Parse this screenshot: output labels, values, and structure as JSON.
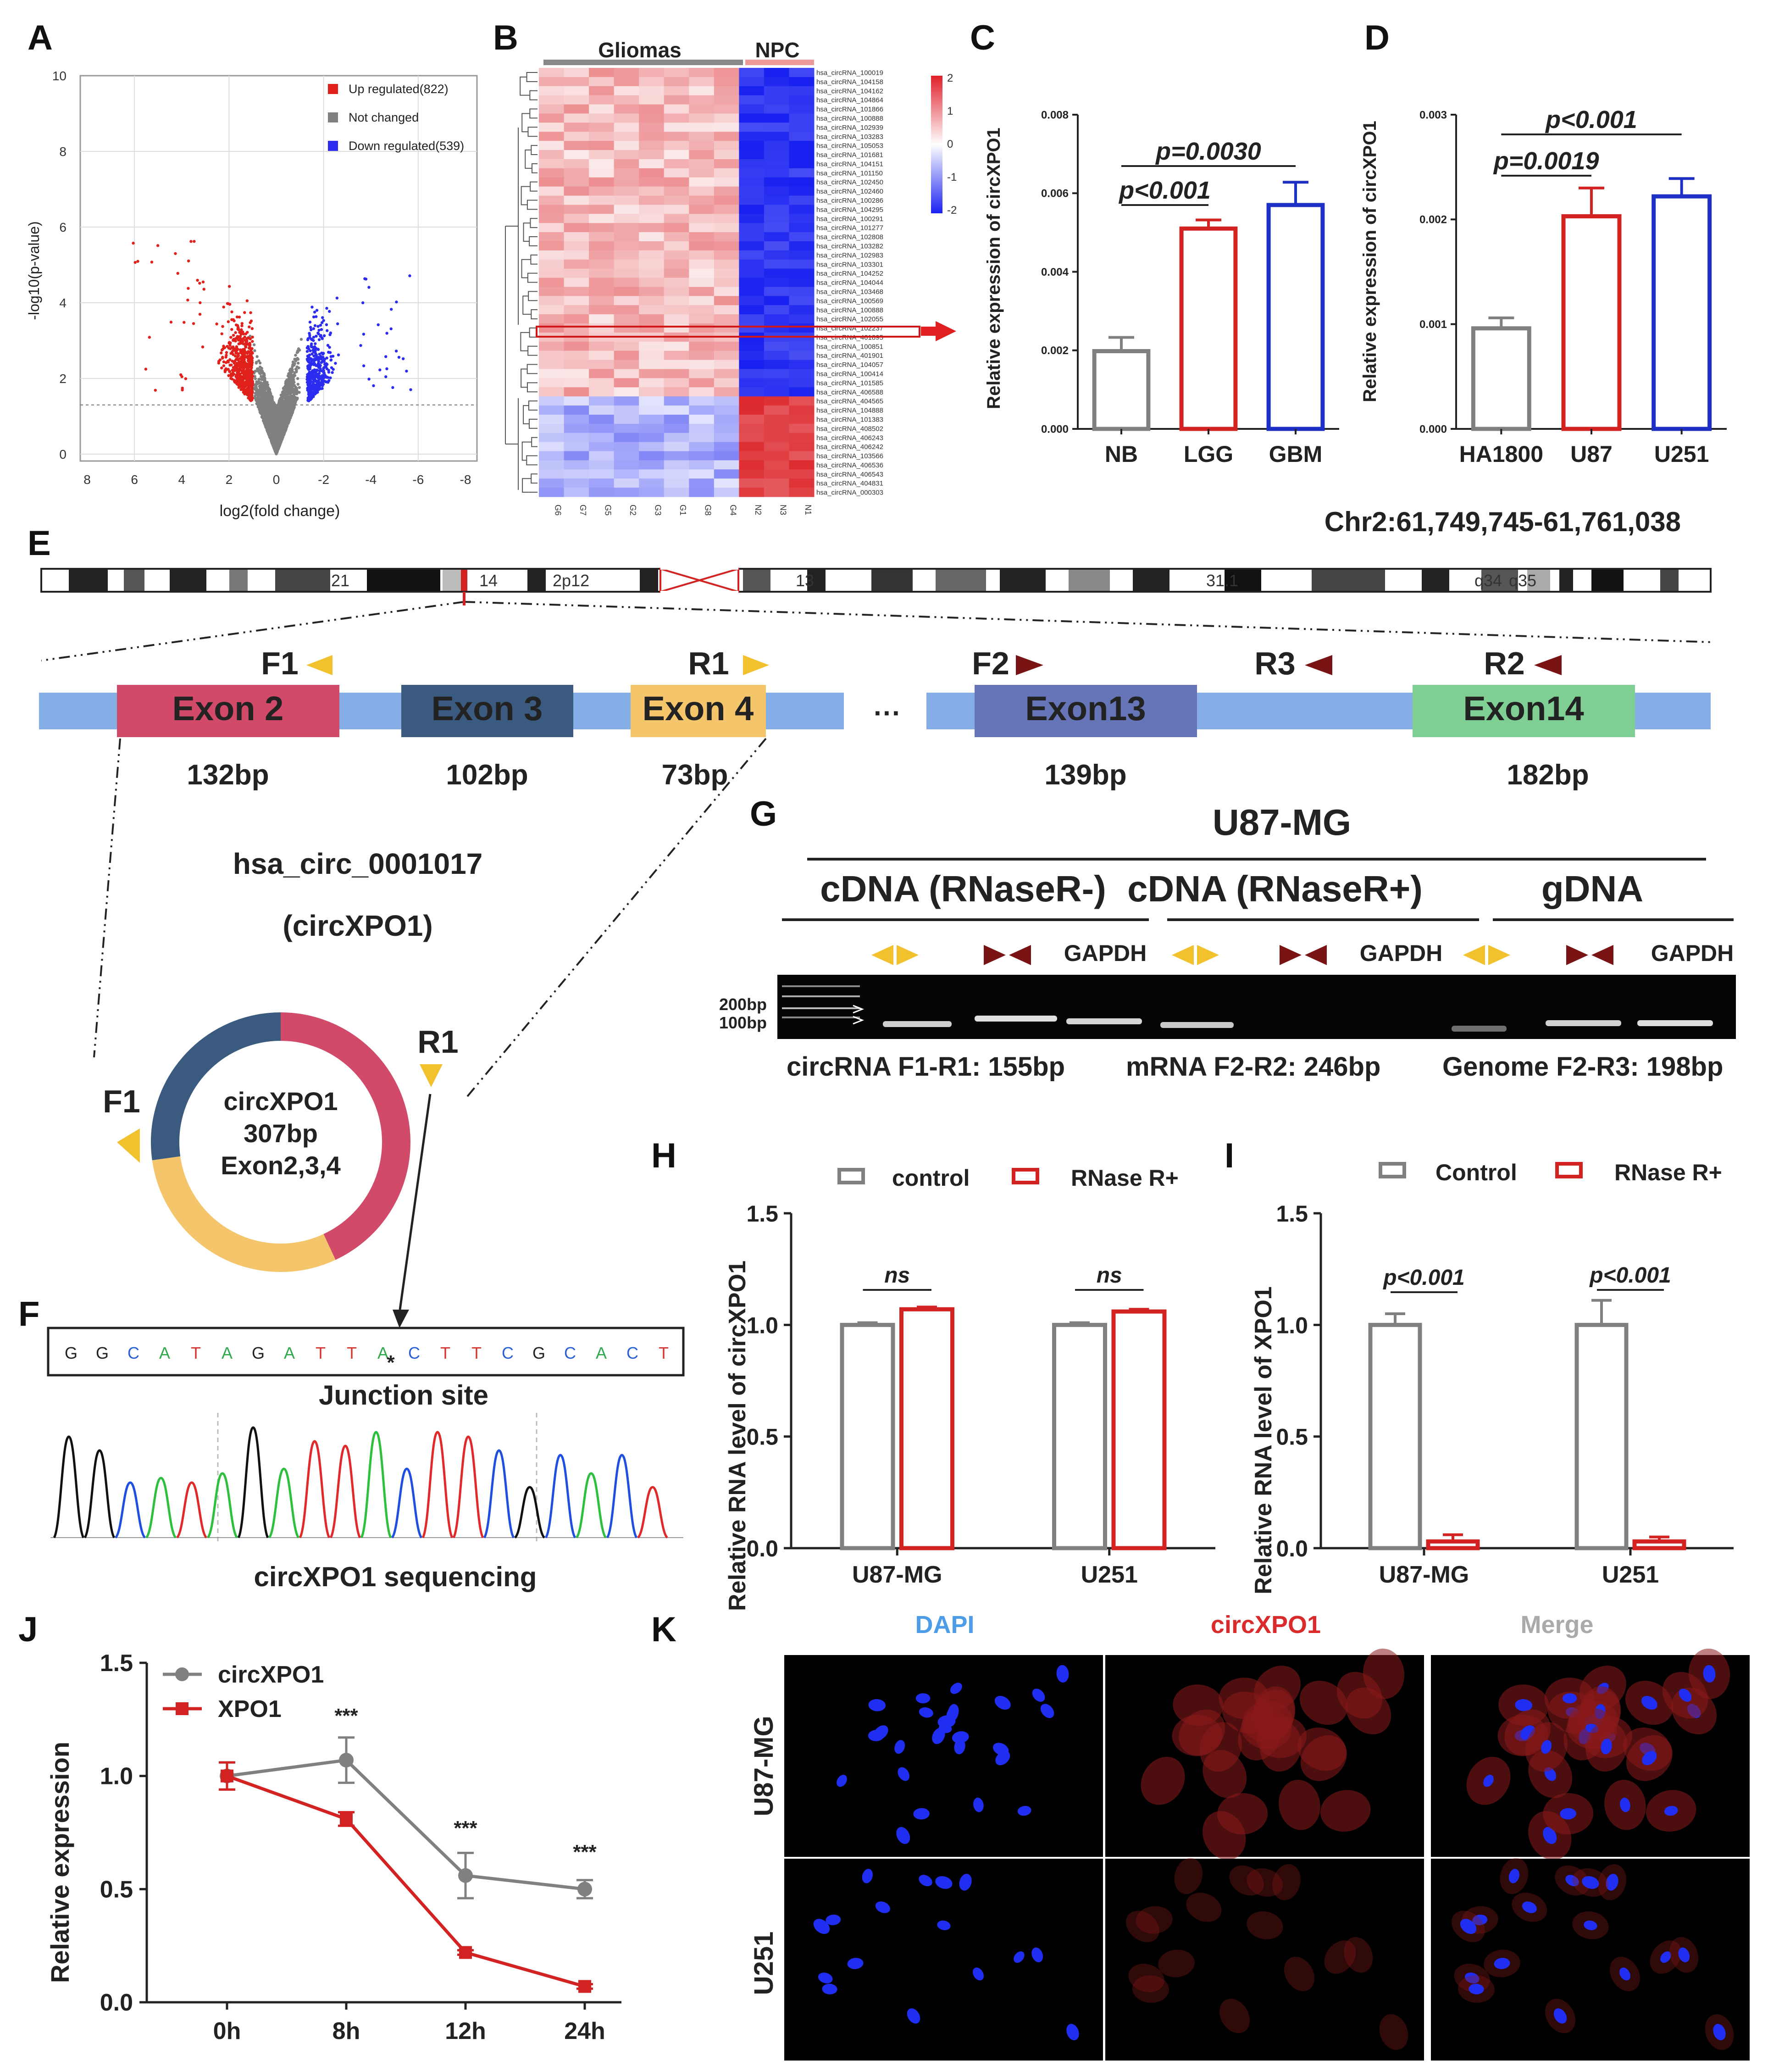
{
  "panel_labels": [
    "A",
    "B",
    "C",
    "D",
    "E",
    "F",
    "G",
    "H",
    "I",
    "J",
    "K"
  ],
  "colors": {
    "up": "#e0201b",
    "down": "#2c2cf0",
    "grey": "#808080",
    "red": "#d32222",
    "blue": "#1d2fc4",
    "primer_yellow": "#f2c12e",
    "primer_darkred": "#7a1414",
    "exon2": "#d24a6a",
    "exon3": "#3b5a80",
    "exon4": "#f4c56b",
    "exon13": "#6575b8",
    "exon14": "#7fcf95",
    "backbone": "#86aee6"
  },
  "chart_data": [
    {
      "panel": "A",
      "type": "scatter",
      "title": "Volcano plot",
      "xlabel": "log2(fold change)",
      "ylabel": "-log10(p-value)",
      "x_ticks": [
        "8",
        "6",
        "4",
        "2",
        "0",
        "-2",
        "-4",
        "-6",
        "-8"
      ],
      "y_ticks": [
        "0",
        "2",
        "4",
        "6",
        "8",
        "10"
      ],
      "ylim": [
        0,
        10
      ],
      "legend": [
        "Up regulated(822)",
        "Not changed",
        "Down regulated(539)"
      ],
      "counts": {
        "up": 822,
        "down": 539
      }
    },
    {
      "panel": "B",
      "type": "heatmap",
      "groups": [
        "Gliomas",
        "NPC"
      ],
      "sample_labels": [
        "G6",
        "G7",
        "G5",
        "G2",
        "G3",
        "G1",
        "G8",
        "G4",
        "N2",
        "N3",
        "N1"
      ],
      "scale_ticks": [
        "2",
        "1",
        "0",
        "-1",
        "-2"
      ],
      "row_labels": [
        "hsa_circRNA_100019",
        "hsa_circRNA_104158",
        "hsa_circRNA_104162",
        "hsa_circRNA_104864",
        "hsa_circRNA_101866",
        "hsa_circRNA_100888",
        "hsa_circRNA_102939",
        "hsa_circRNA_103283",
        "hsa_circRNA_105053",
        "hsa_circRNA_101681",
        "hsa_circRNA_104151",
        "hsa_circRNA_101150",
        "hsa_circRNA_102450",
        "hsa_circRNA_102460",
        "hsa_circRNA_100286",
        "hsa_circRNA_104295",
        "hsa_circRNA_100291",
        "hsa_circRNA_101277",
        "hsa_circRNA_102808",
        "hsa_circRNA_103282",
        "hsa_circRNA_102983",
        "hsa_circRNA_103301",
        "hsa_circRNA_104252",
        "hsa_circRNA_104044",
        "hsa_circRNA_103468",
        "hsa_circRNA_100569",
        "hsa_circRNA_100888",
        "hsa_circRNA_102055",
        "hsa_circRNA_102237",
        "hsa_circRNA_401895",
        "hsa_circRNA_100851",
        "hsa_circRNA_401901",
        "hsa_circRNA_104057",
        "hsa_circRNA_100414",
        "hsa_circRNA_101585",
        "hsa_circRNA_406588",
        "hsa_circRNA_404565",
        "hsa_circRNA_104888",
        "hsa_circRNA_101383",
        "hsa_circRNA_408502",
        "hsa_circRNA_406243",
        "hsa_circRNA_406242",
        "hsa_circRNA_103566",
        "hsa_circRNA_406536",
        "hsa_circRNA_406543",
        "hsa_circRNA_404831",
        "hsa_circRNA_000303"
      ],
      "highlight_row": 28
    },
    {
      "panel": "C",
      "type": "bar",
      "categories": [
        "NB",
        "LGG",
        "GBM"
      ],
      "values": [
        0.00198,
        0.0051,
        0.0057
      ],
      "errors": [
        0.00035,
        0.00022,
        0.00058
      ],
      "ylabel": "Relative expression of circXPO1",
      "y_ticks": [
        "0.000",
        "0.002",
        "0.004",
        "0.006",
        "0.008"
      ],
      "ylim": [
        0,
        0.008
      ],
      "colors": [
        "#808080",
        "#d32222",
        "#1d2fc4"
      ],
      "annotations": [
        "p<0.001",
        "p=0.0030"
      ]
    },
    {
      "panel": "D",
      "type": "bar",
      "categories": [
        "HA1800",
        "U87",
        "U251"
      ],
      "values": [
        0.00096,
        0.00203,
        0.00222
      ],
      "errors": [
        0.0001,
        0.00027,
        0.00017
      ],
      "ylabel": "Relative expression of circXPO1",
      "y_ticks": [
        "0.000",
        "0.001",
        "0.002",
        "0.003"
      ],
      "ylim": [
        0,
        0.003
      ],
      "colors": [
        "#808080",
        "#d32222",
        "#1d2fc4"
      ],
      "annotations": [
        "p=0.0019",
        "p<0.001"
      ]
    },
    {
      "panel": "H",
      "type": "bar",
      "categories": [
        "U87-MG",
        "U251"
      ],
      "series": [
        {
          "name": "control",
          "values": [
            1.0,
            1.0
          ],
          "errors": [
            0.01,
            0.01
          ]
        },
        {
          "name": "RNase R+",
          "values": [
            1.07,
            1.06
          ],
          "errors": [
            0.01,
            0.01
          ]
        }
      ],
      "ylabel": "Relative RNA level of circXPO1",
      "y_ticks": [
        "0.0",
        "0.5",
        "1.0",
        "1.5"
      ],
      "ylim": [
        0,
        1.5
      ],
      "annotations": [
        "ns",
        "ns"
      ]
    },
    {
      "panel": "I",
      "type": "bar",
      "categories": [
        "U87-MG",
        "U251"
      ],
      "series": [
        {
          "name": "Control",
          "values": [
            1.0,
            1.0
          ],
          "errors": [
            0.05,
            0.11
          ]
        },
        {
          "name": "RNase R+",
          "values": [
            0.03,
            0.03
          ],
          "errors": [
            0.03,
            0.02
          ]
        }
      ],
      "ylabel": "Relative RNA level of XPO1",
      "y_ticks": [
        "0.0",
        "0.5",
        "1.0",
        "1.5"
      ],
      "ylim": [
        0,
        1.5
      ],
      "annotations": [
        "p<0.001",
        "p<0.001"
      ]
    },
    {
      "panel": "J",
      "type": "line",
      "categories": [
        "0h",
        "8h",
        "12h",
        "24h"
      ],
      "series": [
        {
          "name": "circXPO1",
          "values": [
            1.0,
            1.07,
            0.56,
            0.5
          ],
          "errors": [
            0.06,
            0.1,
            0.1,
            0.04
          ]
        },
        {
          "name": "XPO1",
          "values": [
            1.0,
            0.81,
            0.22,
            0.07
          ],
          "errors": [
            0.06,
            0.03,
            0.01,
            0.01
          ]
        }
      ],
      "ylabel": "Relative expression",
      "y_ticks": [
        "0.0",
        "0.5",
        "1.0",
        "1.5"
      ],
      "ylim": [
        0,
        1.5
      ],
      "annotations": [
        "***",
        "***",
        "***"
      ]
    }
  ],
  "panel_e": {
    "coordinate": "Chr2:61,749,745-61,761,038",
    "bands": [
      "21",
      "14",
      "2p12",
      "13",
      "31.1",
      "q34",
      "q35"
    ],
    "exons": [
      {
        "name": "Exon 2",
        "length": "132bp"
      },
      {
        "name": "Exon 3",
        "length": "102bp"
      },
      {
        "name": "Exon 4",
        "length": "73bp"
      },
      {
        "name": "Exon13",
        "length": "139bp"
      },
      {
        "name": "Exon14",
        "length": "182bp"
      }
    ],
    "primers": [
      "F1",
      "R1",
      "F2",
      "R3",
      "R2"
    ],
    "ellipsis": "···",
    "circ_id": "hsa_circ_0001017",
    "circ_name": "(circXPO1)",
    "ring_lines": [
      "circXPO1",
      "307bp",
      "Exon2,3,4"
    ]
  },
  "panel_f": {
    "sequence": [
      "G",
      "G",
      "C",
      "A",
      "T",
      "A",
      "G",
      "A",
      "T",
      "T",
      "A",
      "C",
      "T",
      "T",
      "C",
      "G",
      "C",
      "A",
      "C",
      "T"
    ],
    "junction_marker": "*",
    "junction_label": "Junction site",
    "caption": "circXPO1 sequencing"
  },
  "panel_g": {
    "title": "U87-MG",
    "groups": [
      "cDNA (RNaseR-)",
      "cDNA (RNaseR+)",
      "gDNA"
    ],
    "lane_label": "GAPDH",
    "markers": [
      "200bp",
      "100bp"
    ],
    "captions": [
      "circRNA F1-R1: 155bp",
      "mRNA F2-R2: 246bp",
      "Genome F2-R3: 198bp"
    ]
  },
  "panel_k": {
    "columns": [
      "DAPI",
      "circXPO1",
      "Merge"
    ],
    "rows": [
      "U87-MG",
      "U251"
    ]
  }
}
